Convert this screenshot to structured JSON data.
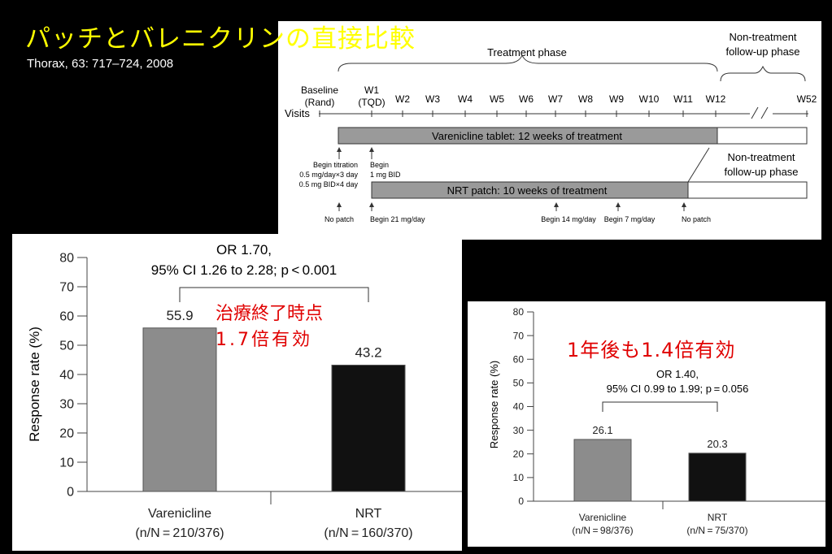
{
  "slide": {
    "title": "パッチとバレニクリンの直接比較",
    "citation": "Thorax, 63: 717–724, 2008"
  },
  "timeline": {
    "treatment_phase": "Treatment phase",
    "nontreatment_phase_line1": "Non-treatment",
    "nontreatment_phase_line2": "follow-up phase",
    "visits_label": "Visits",
    "visits": [
      {
        "label": "Baseline",
        "sub": "(Rand)"
      },
      {
        "label": "W1",
        "sub": "(TQD)"
      },
      {
        "label": "W2",
        "sub": ""
      },
      {
        "label": "W3",
        "sub": ""
      },
      {
        "label": "W4",
        "sub": ""
      },
      {
        "label": "W5",
        "sub": ""
      },
      {
        "label": "W6",
        "sub": ""
      },
      {
        "label": "W7",
        "sub": ""
      },
      {
        "label": "W8",
        "sub": ""
      },
      {
        "label": "W9",
        "sub": ""
      },
      {
        "label": "W10",
        "sub": ""
      },
      {
        "label": "W11",
        "sub": ""
      },
      {
        "label": "W12",
        "sub": ""
      },
      {
        "label": "W52",
        "sub": ""
      }
    ],
    "varenicline_bar": "Varenicline tablet: 12 weeks of treatment",
    "nrt_bar": "NRT patch: 10 weeks of treatment",
    "varenicline_notes": {
      "begin_titration_1": "Begin titration",
      "begin_titration_2": "0.5 mg/day×3 day",
      "begin_titration_3": "0.5 mg BID×4 day",
      "begin_1": "Begin",
      "begin_2": "1 mg BID"
    },
    "nrt_notes": {
      "no_patch_start": "No patch",
      "begin_21": "Begin 21 mg/day",
      "begin_14": "Begin 14 mg/day",
      "begin_7": "Begin 7 mg/day",
      "no_patch_end": "No patch"
    },
    "followup_line1": "Non-treatment",
    "followup_line2": "follow-up phase"
  },
  "annotations": {
    "end_of_treatment_1": "治療終了時点",
    "end_of_treatment_2": "1.7倍有効",
    "one_year": "1年後も1.4倍有効"
  },
  "chart_data": [
    {
      "type": "bar",
      "title": "",
      "categories": [
        "Varenicline",
        "NRT"
      ],
      "category_sublabels": [
        "(n/N = 210/376)",
        "(n/N = 160/370)"
      ],
      "values": [
        55.9,
        43.2
      ],
      "value_labels": [
        "55.9",
        "43.2"
      ],
      "colors": [
        "#8c8c8c",
        "#111111"
      ],
      "ylabel": "Response rate (%)",
      "ylim": [
        0,
        80
      ],
      "yticks": [
        0,
        10,
        20,
        30,
        40,
        50,
        60,
        70,
        80
      ],
      "ytick_labels": [
        "0",
        "10",
        "20",
        "30",
        "40",
        "50",
        "60",
        "70",
        "80"
      ],
      "stat_line1": "OR 1.70,",
      "stat_line2": "95% CI 1.26 to 2.28; p < 0.001",
      "grid": false
    },
    {
      "type": "bar",
      "title": "",
      "categories": [
        "Varenicline",
        "NRT"
      ],
      "category_sublabels": [
        "(n/N = 98/376)",
        "(n/N = 75/370)"
      ],
      "values": [
        26.1,
        20.3
      ],
      "value_labels": [
        "26.1",
        "20.3"
      ],
      "colors": [
        "#8c8c8c",
        "#111111"
      ],
      "ylabel": "Response rate (%)",
      "ylim": [
        0,
        80
      ],
      "yticks": [
        0,
        10,
        20,
        30,
        40,
        50,
        60,
        70,
        80
      ],
      "ytick_labels": [
        "0",
        "10",
        "20",
        "30",
        "40",
        "50",
        "60",
        "70",
        "80"
      ],
      "stat_line1": "OR 1.40,",
      "stat_line2": "95% CI 0.99 to 1.99; p = 0.056",
      "grid": false
    }
  ]
}
